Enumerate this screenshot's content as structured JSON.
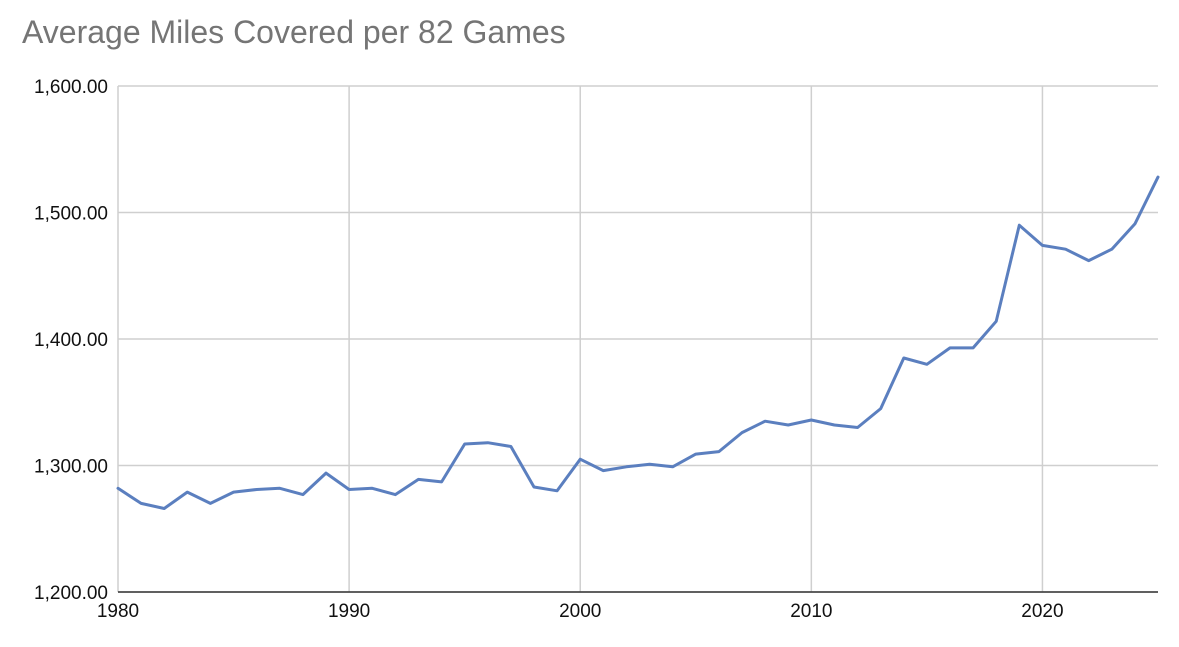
{
  "chart_data": {
    "type": "line",
    "title": "Average Miles Covered per 82 Games",
    "xlabel": "",
    "ylabel": "",
    "xlim": [
      1980,
      2025
    ],
    "ylim": [
      1200,
      1600
    ],
    "x_ticks": [
      1980,
      1990,
      2000,
      2010,
      2020
    ],
    "y_ticks": [
      1200,
      1300,
      1400,
      1500,
      1600
    ],
    "y_tick_labels": [
      "1,200.00",
      "1,300.00",
      "1,400.00",
      "1,500.00",
      "1,600.00"
    ],
    "grid": true,
    "legend": "none",
    "series": [
      {
        "color": "#5b7fbf",
        "x": [
          1980,
          1981,
          1982,
          1983,
          1984,
          1985,
          1986,
          1987,
          1988,
          1989,
          1990,
          1991,
          1992,
          1993,
          1994,
          1995,
          1996,
          1997,
          1998,
          1999,
          2000,
          2001,
          2002,
          2003,
          2004,
          2005,
          2006,
          2007,
          2008,
          2009,
          2010,
          2011,
          2012,
          2013,
          2014,
          2015,
          2016,
          2017,
          2018,
          2019,
          2020,
          2021,
          2022,
          2023,
          2024,
          2025
        ],
        "values": [
          1282,
          1270,
          1266,
          1279,
          1270,
          1279,
          1281,
          1282,
          1277,
          1294,
          1281,
          1282,
          1277,
          1289,
          1287,
          1317,
          1318,
          1315,
          1283,
          1280,
          1305,
          1296,
          1299,
          1301,
          1299,
          1309,
          1311,
          1326,
          1335,
          1332,
          1336,
          1332,
          1330,
          1345,
          1385,
          1380,
          1393,
          1393,
          1414,
          1490,
          1474,
          1471,
          1462,
          1471,
          1491,
          1528
        ]
      }
    ]
  }
}
